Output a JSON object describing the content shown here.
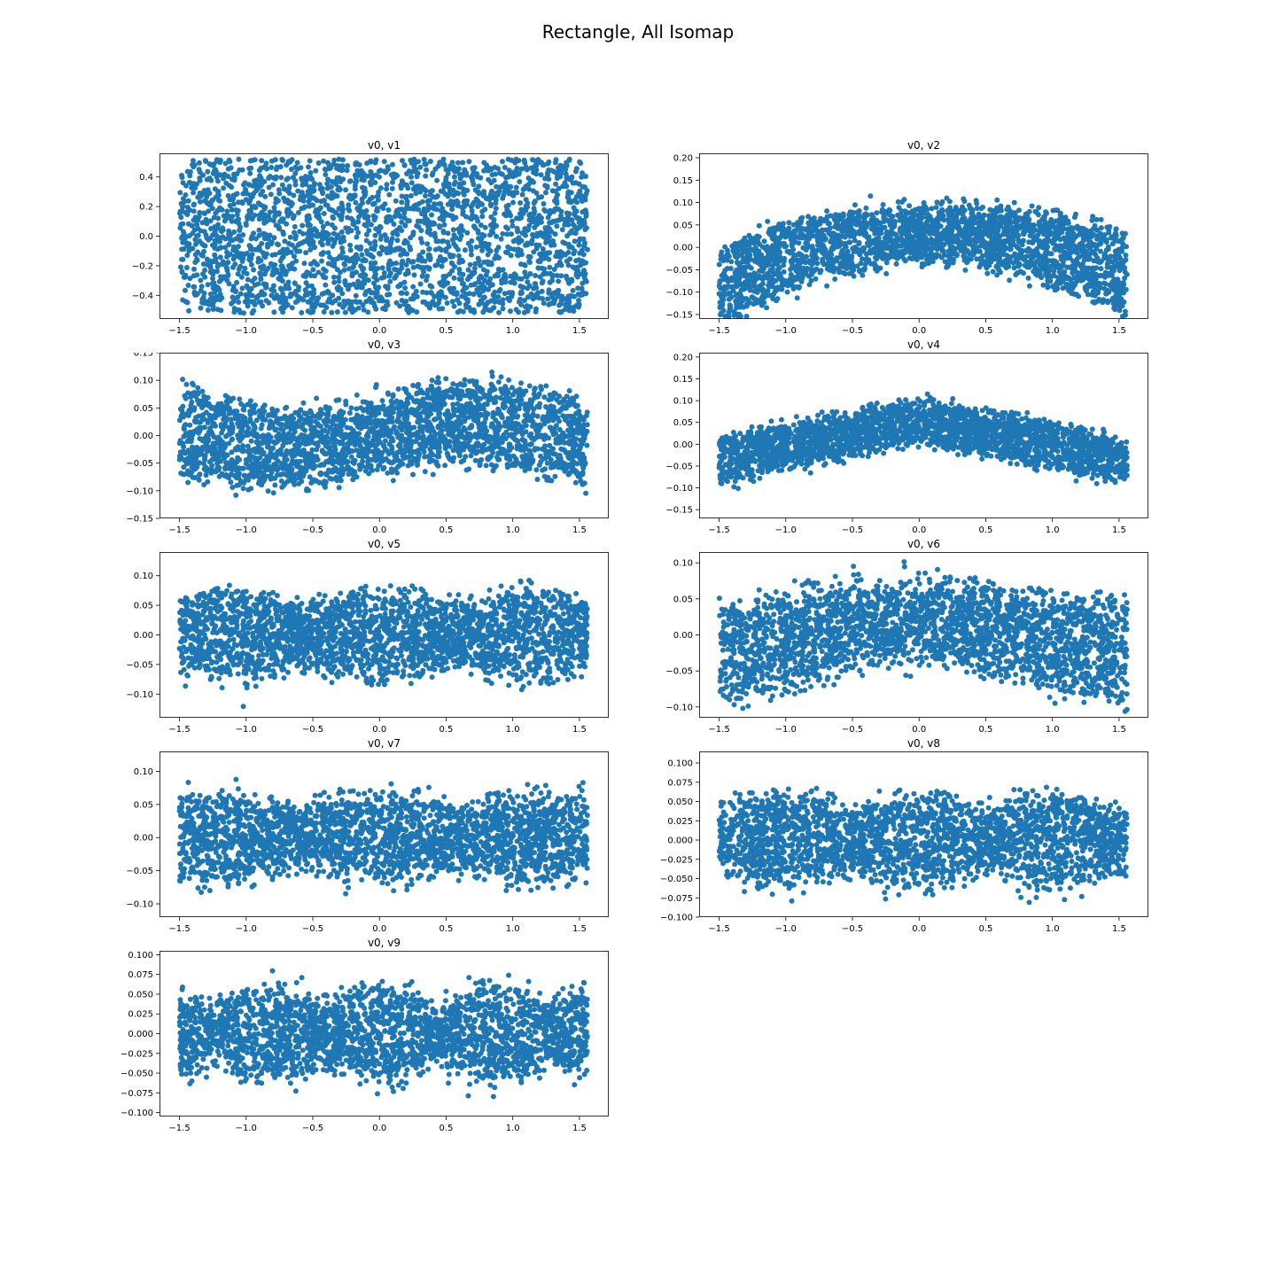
{
  "figure": {
    "title": "Rectangle, All Isomap"
  },
  "chart_data": [
    {
      "type": "scatter",
      "title": "v0, v1",
      "xlim": [
        -1.65,
        1.72
      ],
      "ylim": [
        -0.56,
        0.56
      ],
      "xticks": [
        "−1.5",
        "−1.0",
        "−0.5",
        "0.0",
        "0.5",
        "1.0",
        "1.5"
      ],
      "yticks": [
        "−0.4",
        "−0.2",
        "0.0",
        "0.2",
        "0.4"
      ],
      "marker_color": "#1f77b4",
      "shape": "rectangle",
      "x_range": [
        -1.5,
        1.56
      ],
      "y_range": [
        -0.52,
        0.52
      ],
      "grid": false
    },
    {
      "type": "scatter",
      "title": "v0, v2",
      "xlim": [
        -1.65,
        1.72
      ],
      "ylim": [
        -0.16,
        0.21
      ],
      "xticks": [
        "−1.5",
        "−1.0",
        "−0.5",
        "0.0",
        "0.5",
        "1.0",
        "1.5"
      ],
      "yticks": [
        "−0.15",
        "−0.10",
        "−0.05",
        "0.00",
        "0.05",
        "0.10",
        "0.15",
        "0.20"
      ],
      "marker_color": "#1f77b4",
      "shape": "arch",
      "x_range": [
        -1.5,
        1.56
      ],
      "grid": false
    },
    {
      "type": "scatter",
      "title": "v0, v3",
      "xlim": [
        -1.65,
        1.72
      ],
      "ylim": [
        -0.15,
        0.15
      ],
      "xticks": [
        "−1.5",
        "−1.0",
        "−0.5",
        "0.0",
        "0.5",
        "1.0",
        "1.5"
      ],
      "yticks": [
        "−0.15",
        "−0.10",
        "−0.05",
        "0.00",
        "0.05",
        "0.10",
        "0.15"
      ],
      "marker_color": "#1f77b4",
      "shape": "s-wave",
      "x_range": [
        -1.5,
        1.56
      ],
      "grid": false
    },
    {
      "type": "scatter",
      "title": "v0, v4",
      "xlim": [
        -1.65,
        1.72
      ],
      "ylim": [
        -0.17,
        0.21
      ],
      "xticks": [
        "−1.5",
        "−1.0",
        "−0.5",
        "0.0",
        "0.5",
        "1.0",
        "1.5"
      ],
      "yticks": [
        "−0.15",
        "−0.10",
        "−0.05",
        "0.00",
        "0.05",
        "0.10",
        "0.15",
        "0.20"
      ],
      "marker_color": "#1f77b4",
      "shape": "peak",
      "x_range": [
        -1.5,
        1.56
      ],
      "grid": false
    },
    {
      "type": "scatter",
      "title": "v0, v5",
      "xlim": [
        -1.65,
        1.72
      ],
      "ylim": [
        -0.14,
        0.14
      ],
      "xticks": [
        "−1.5",
        "−1.0",
        "−0.5",
        "0.0",
        "0.5",
        "1.0",
        "1.5"
      ],
      "yticks": [
        "−0.10",
        "−0.05",
        "0.00",
        "0.05",
        "0.10"
      ],
      "marker_color": "#1f77b4",
      "shape": "wave3",
      "x_range": [
        -1.5,
        1.56
      ],
      "grid": false
    },
    {
      "type": "scatter",
      "title": "v0, v6",
      "xlim": [
        -1.65,
        1.72
      ],
      "ylim": [
        -0.115,
        0.115
      ],
      "xticks": [
        "−1.5",
        "−1.0",
        "−0.5",
        "0.0",
        "0.5",
        "1.0",
        "1.5"
      ],
      "yticks": [
        "−0.10",
        "−0.05",
        "0.00",
        "0.05",
        "0.10"
      ],
      "marker_color": "#1f77b4",
      "shape": "wave4",
      "x_range": [
        -1.5,
        1.56
      ],
      "grid": false
    },
    {
      "type": "scatter",
      "title": "v0, v7",
      "xlim": [
        -1.65,
        1.72
      ],
      "ylim": [
        -0.12,
        0.13
      ],
      "xticks": [
        "−1.5",
        "−1.0",
        "−0.5",
        "0.0",
        "0.5",
        "1.0",
        "1.5"
      ],
      "yticks": [
        "−0.10",
        "−0.05",
        "0.00",
        "0.05",
        "0.10"
      ],
      "marker_color": "#1f77b4",
      "shape": "wave5",
      "x_range": [
        -1.5,
        1.56
      ],
      "grid": false
    },
    {
      "type": "scatter",
      "title": "v0, v8",
      "xlim": [
        -1.65,
        1.72
      ],
      "ylim": [
        -0.1,
        0.115
      ],
      "xticks": [
        "−1.5",
        "−1.0",
        "−0.5",
        "0.0",
        "0.5",
        "1.0",
        "1.5"
      ],
      "yticks": [
        "−0.100",
        "−0.075",
        "−0.050",
        "−0.025",
        "0.000",
        "0.025",
        "0.050",
        "0.075",
        "0.100"
      ],
      "marker_color": "#1f77b4",
      "shape": "wave6",
      "x_range": [
        -1.5,
        1.56
      ],
      "grid": false
    },
    {
      "type": "scatter",
      "title": "v0, v9",
      "xlim": [
        -1.65,
        1.72
      ],
      "ylim": [
        -0.105,
        0.105
      ],
      "xticks": [
        "−1.5",
        "−1.0",
        "−0.5",
        "0.0",
        "0.5",
        "1.0",
        "1.5"
      ],
      "yticks": [
        "−0.100",
        "−0.075",
        "−0.050",
        "−0.025",
        "0.000",
        "0.025",
        "0.050",
        "0.075",
        "0.100"
      ],
      "marker_color": "#1f77b4",
      "shape": "wave7",
      "x_range": [
        -1.5,
        1.56
      ],
      "grid": false
    }
  ]
}
